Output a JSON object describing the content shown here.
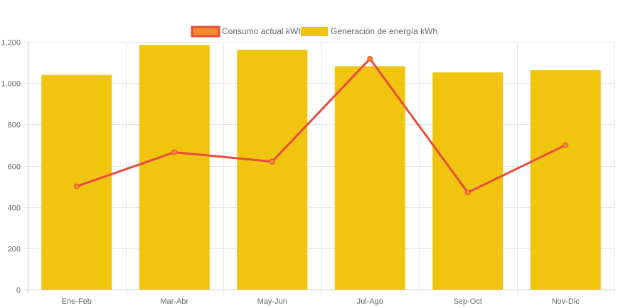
{
  "chart_data": {
    "type": "bar",
    "categories": [
      "Ene-Feb",
      "Mar-Abr",
      "May-Jun",
      "Jul-Ago",
      "Sep-Oct",
      "Nov-Dic"
    ],
    "series": [
      {
        "name": "Consumo actual kWh",
        "type": "line",
        "values": [
          500,
          665,
          620,
          1118,
          470,
          700
        ],
        "color": "#e84c3d",
        "legend_fill": "#f08c2c"
      },
      {
        "name": "Generación de energía kWh",
        "type": "bar",
        "values": [
          1040,
          1185,
          1162,
          1082,
          1052,
          1063
        ],
        "color": "#f1c40f"
      }
    ],
    "y_ticks": [
      "0",
      "200",
      "400",
      "600",
      "800",
      "1,000",
      "1,200"
    ],
    "ylim": [
      0,
      1200
    ],
    "grid": true,
    "legend_position": "top-center"
  }
}
